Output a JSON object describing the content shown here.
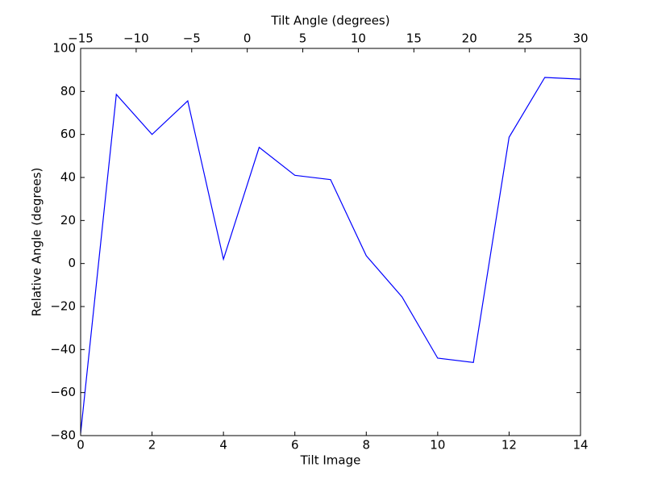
{
  "chart_data": {
    "type": "line",
    "xlabel": "Tilt Image",
    "x2label": "Tilt Angle (degrees)",
    "ylabel": "Relative Angle (degrees)",
    "x": [
      0,
      1,
      2,
      3,
      4,
      5,
      6,
      7,
      8,
      9,
      10,
      11,
      12,
      13,
      14
    ],
    "values": [
      -79,
      78.6,
      60,
      75.6,
      2,
      54,
      41,
      39,
      3.6,
      -15.5,
      -44,
      -46,
      58.7,
      86.5,
      85.7
    ],
    "color": "#0000ff",
    "xlim": [
      0,
      14
    ],
    "xticks": [
      0,
      2,
      4,
      6,
      8,
      10,
      12,
      14
    ],
    "x2lim": [
      -15,
      30
    ],
    "x2ticks": [
      {
        "value": -15,
        "label": "−15"
      },
      {
        "value": -10,
        "label": "−10"
      },
      {
        "value": -5,
        "label": "−5"
      },
      0,
      5,
      10,
      15,
      20,
      25,
      30
    ],
    "ylim": [
      -80,
      100
    ],
    "yticks": [
      {
        "value": -80,
        "label": "−80"
      },
      {
        "value": -60,
        "label": "−60"
      },
      {
        "value": -40,
        "label": "−40"
      },
      {
        "value": -20,
        "label": "−20"
      },
      0,
      20,
      40,
      60,
      80,
      100
    ]
  }
}
